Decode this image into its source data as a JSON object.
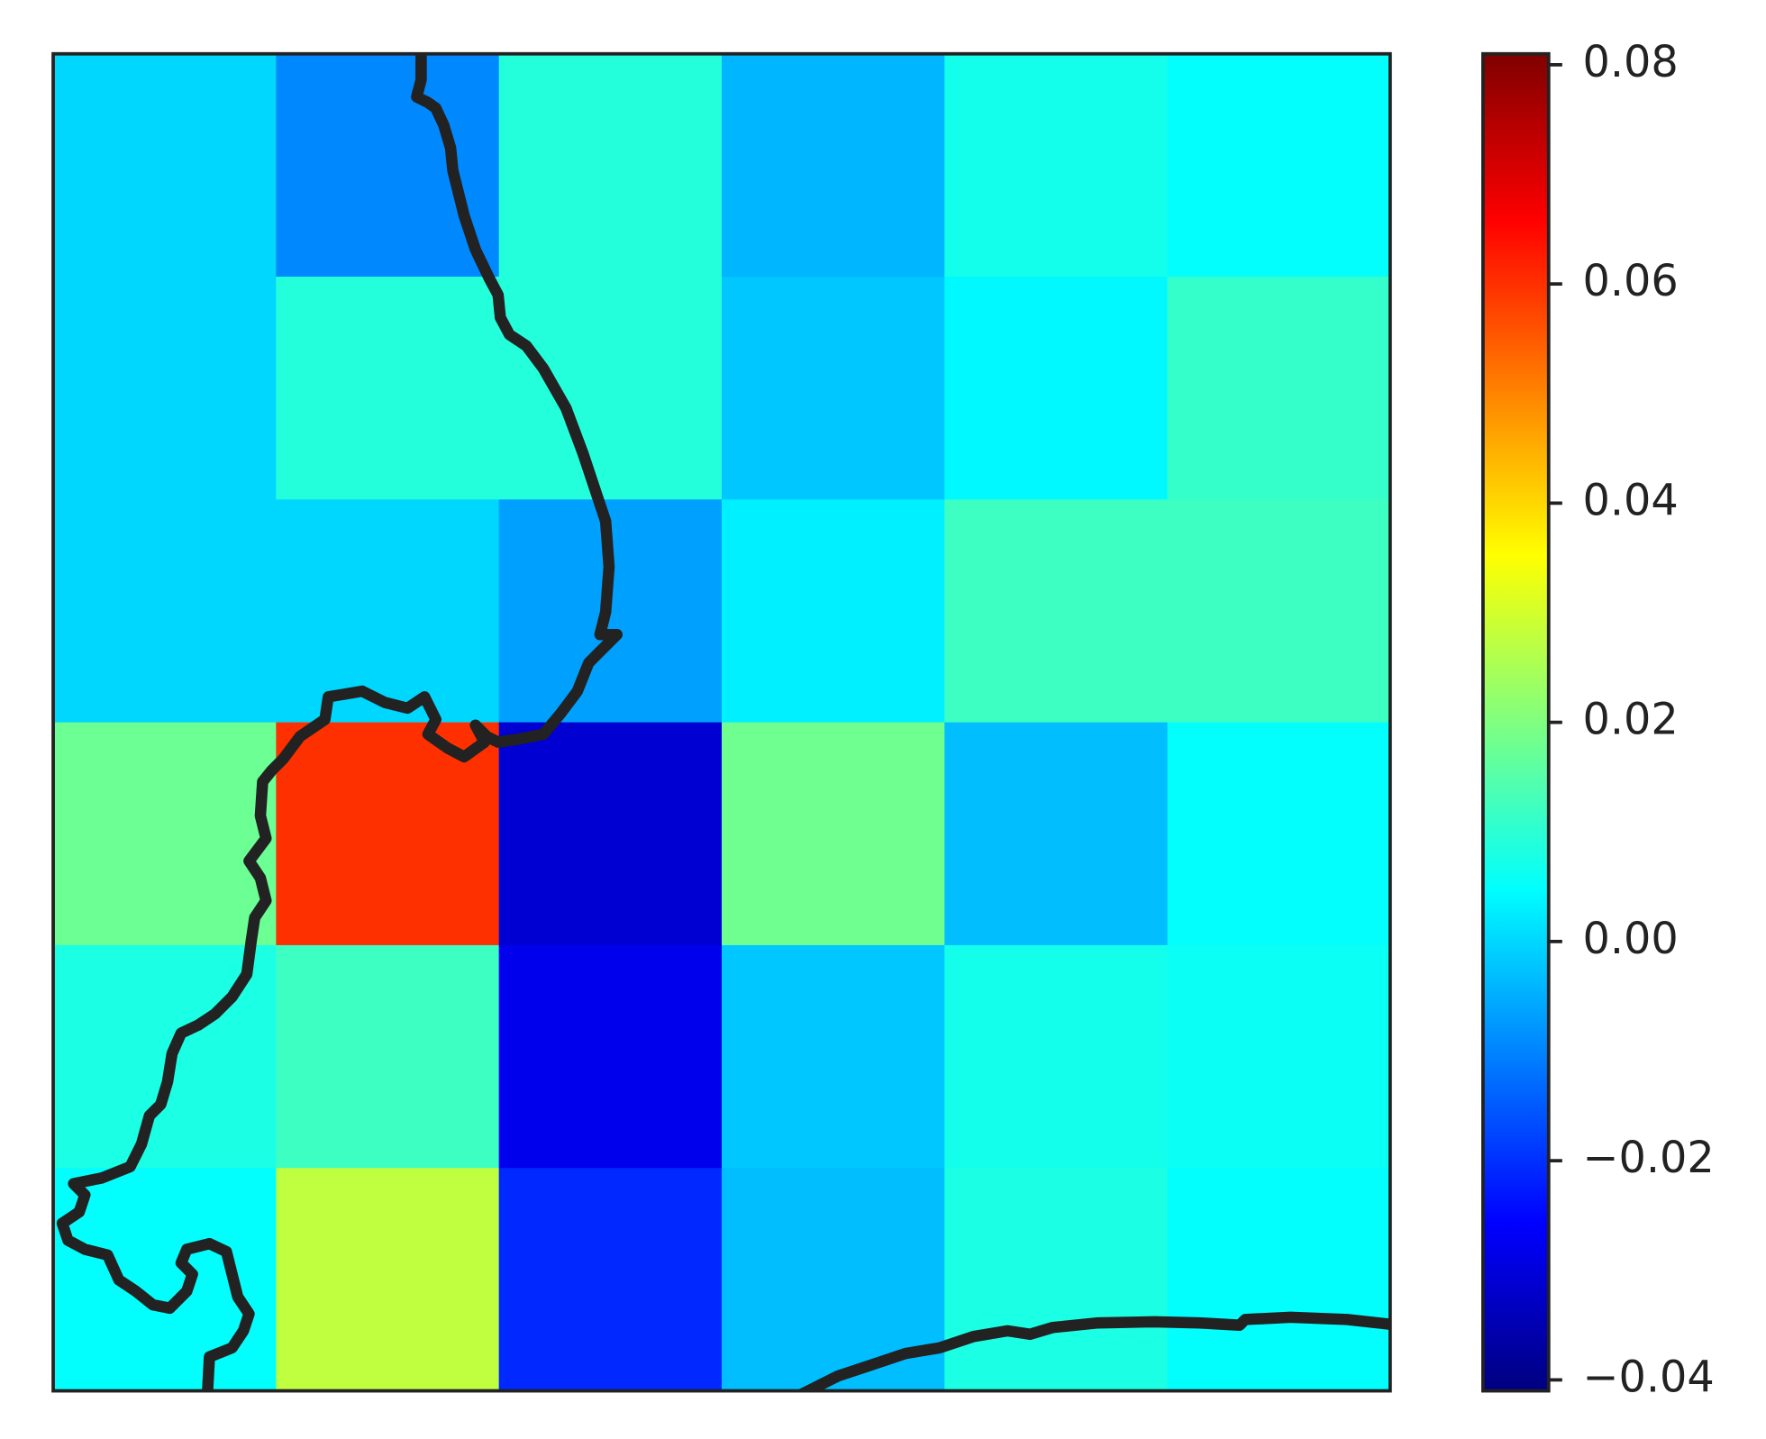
{
  "chart_data": {
    "type": "heatmap",
    "colormap": "jet",
    "values": [
      [
        0.0,
        -0.0095,
        0.009,
        -0.004,
        0.007,
        0.005
      ],
      [
        0.0,
        0.009,
        0.009,
        -0.002,
        0.004,
        0.011
      ],
      [
        0.0,
        0.0,
        -0.0066,
        0.003,
        0.012,
        0.012
      ],
      [
        0.0176,
        0.06,
        -0.031,
        0.018,
        -0.003,
        0.005
      ],
      [
        0.008,
        0.012,
        -0.028,
        -0.002,
        0.007,
        0.006
      ],
      [
        0.005,
        0.0276,
        -0.021,
        -0.003,
        0.008,
        0.005
      ]
    ],
    "clim": [
      -0.041,
      0.081
    ],
    "cticks": [
      {
        "value": -0.04,
        "label": "−0.04"
      },
      {
        "value": -0.02,
        "label": "−0.02"
      },
      {
        "value": 0,
        "label": "0.00"
      },
      0.02,
      0.04,
      0.06,
      0.08
    ]
  }
}
